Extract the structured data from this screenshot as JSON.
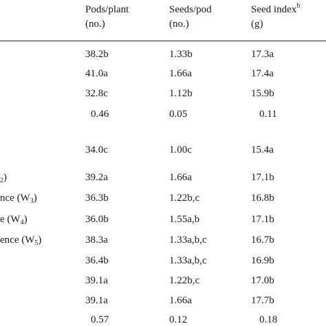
{
  "header": {
    "col1_line1": "Pods/plant",
    "col1_line2": "(no.)",
    "col2_line1": "Seeds/pod",
    "col2_line2": "(no.)",
    "col3_line1": "Seed index",
    "col3_sup": "b",
    "col3_line2": "(g)"
  },
  "labels": {
    "r6_text": ")",
    "r6_sub": "2",
    "r7_text": "nce (W",
    "r7_sub": "3",
    "r7_end": ")",
    "r8_text": "e (W",
    "r8_sub": "4",
    "r8_end": ")",
    "r9_text": "ence (W",
    "r9_sub": "5",
    "r9_end": ")"
  },
  "rows": [
    {
      "pods": "38.2b",
      "seeds": "1.33b",
      "index": "17.3a"
    },
    {
      "pods": "41.0a",
      "seeds": "1.66a",
      "index": "17.4a"
    },
    {
      "pods": "32.8c",
      "seeds": "1.12b",
      "index": "15.9b"
    },
    {
      "pods": "0.46",
      "seeds": "0.05",
      "index": "0.11"
    },
    {
      "pods": "34.0c",
      "seeds": "1.00c",
      "index": "15.4a"
    },
    {
      "pods": "39.2a",
      "seeds": "1.66a",
      "index": "17.1b"
    },
    {
      "pods": "36.3b",
      "seeds": "1.22b,c",
      "index": "16.8b"
    },
    {
      "pods": "36.0b",
      "seeds": "1.55a,b",
      "index": "17.1b"
    },
    {
      "pods": "38.3a",
      "seeds": "1.33a,b,c",
      "index": "16.7b"
    },
    {
      "pods": "36.4b",
      "seeds": "1.33a,b,c",
      "index": "16.9b"
    },
    {
      "pods": "39.1a",
      "seeds": "1.22b,c",
      "index": "17.0b"
    },
    {
      "pods": "39.1a",
      "seeds": "1.66a",
      "index": "17.7b"
    },
    {
      "pods": "0.57",
      "seeds": "0.12",
      "index": "0.18"
    }
  ]
}
